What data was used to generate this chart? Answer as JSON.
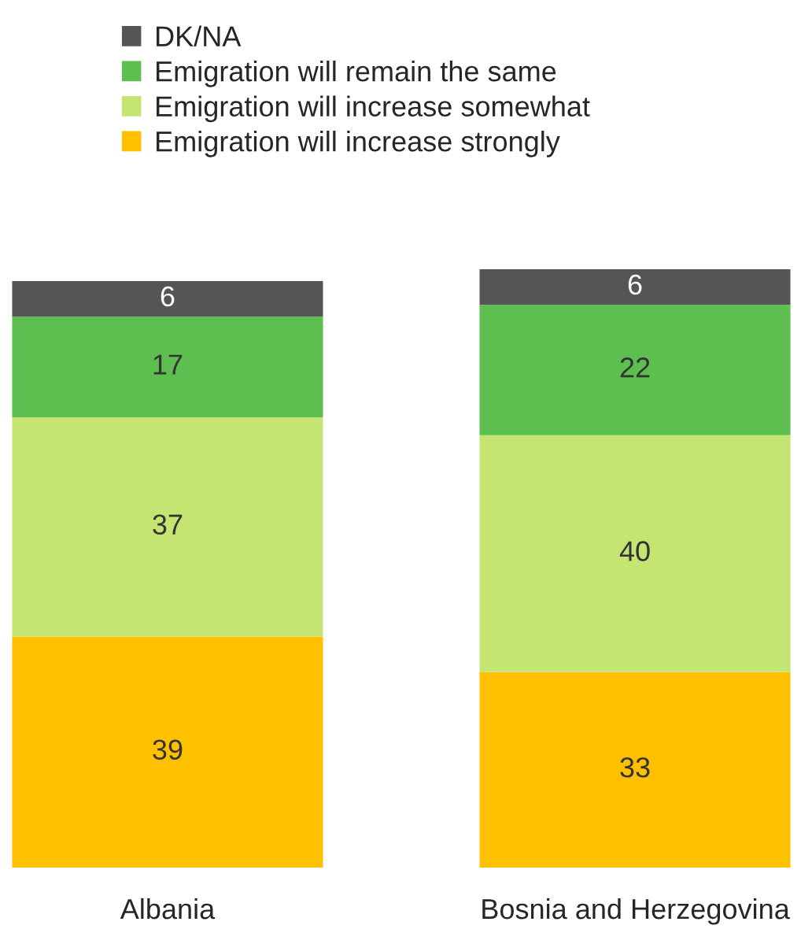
{
  "chart_data": {
    "type": "bar",
    "stacked": true,
    "categories": [
      "Albania",
      "Bosnia and Herzegovina"
    ],
    "series": [
      {
        "name": "Emigration will increase strongly",
        "color": "#ffc000",
        "values": [
          39,
          33
        ]
      },
      {
        "name": "Emigration will increase somewhat",
        "color": "#c5e573",
        "values": [
          37,
          40
        ]
      },
      {
        "name": "Emigration will remain the same",
        "color": "#5dbf4f",
        "values": [
          17,
          22
        ]
      },
      {
        "name": "DK/NA",
        "color": "#555555",
        "values": [
          6,
          6
        ]
      }
    ],
    "data_labels": true,
    "legend": "top",
    "tick_labels": "x",
    "grid": false
  }
}
